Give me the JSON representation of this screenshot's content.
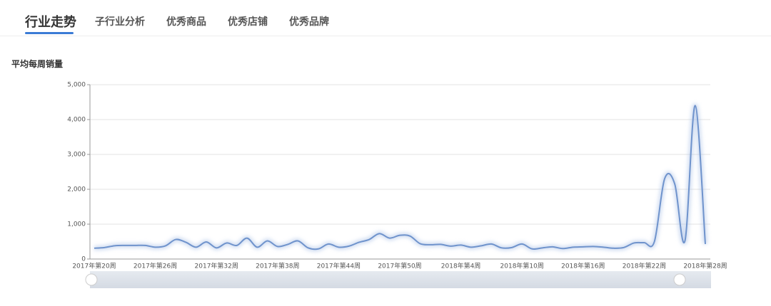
{
  "tabs": [
    "行业走势",
    "子行业分析",
    "优秀商品",
    "优秀店铺",
    "优秀品牌"
  ],
  "section_title": "平均每周销量",
  "chart_data": {
    "type": "line",
    "categories": [
      "2017年第20周",
      null,
      null,
      null,
      null,
      null,
      "2017年第26周",
      null,
      null,
      null,
      null,
      null,
      "2017年第32周",
      null,
      null,
      null,
      null,
      null,
      "2017年第38周",
      null,
      null,
      null,
      null,
      null,
      "2017年第44周",
      null,
      null,
      null,
      null,
      null,
      "2017年第50周",
      null,
      null,
      null,
      null,
      null,
      "2018年第4周",
      null,
      null,
      null,
      null,
      null,
      "2018年第10周",
      null,
      null,
      null,
      null,
      null,
      "2018年第16周",
      null,
      null,
      null,
      null,
      null,
      "2018年第22周",
      null,
      null,
      null,
      null,
      null,
      "2018年第28周"
    ],
    "values": [
      310,
      330,
      380,
      390,
      390,
      390,
      340,
      380,
      560,
      480,
      340,
      490,
      320,
      460,
      390,
      600,
      340,
      520,
      360,
      420,
      520,
      320,
      290,
      430,
      340,
      370,
      480,
      560,
      730,
      600,
      680,
      660,
      440,
      410,
      420,
      370,
      400,
      340,
      380,
      430,
      320,
      330,
      430,
      290,
      320,
      350,
      300,
      340,
      350,
      360,
      340,
      310,
      330,
      460,
      470,
      500,
      2300,
      2150,
      520,
      4400,
      430
    ],
    "color": "#6f93cc",
    "ylim": [
      0,
      5000
    ],
    "yticks": [
      0,
      {
        "value": 1000,
        "label": "1,000"
      },
      {
        "value": 2000,
        "label": "2,000"
      },
      {
        "value": 3000,
        "label": "3,000"
      },
      {
        "value": 4000,
        "label": "4,000"
      },
      {
        "value": 5000,
        "label": "5,000"
      }
    ],
    "grid": true
  }
}
